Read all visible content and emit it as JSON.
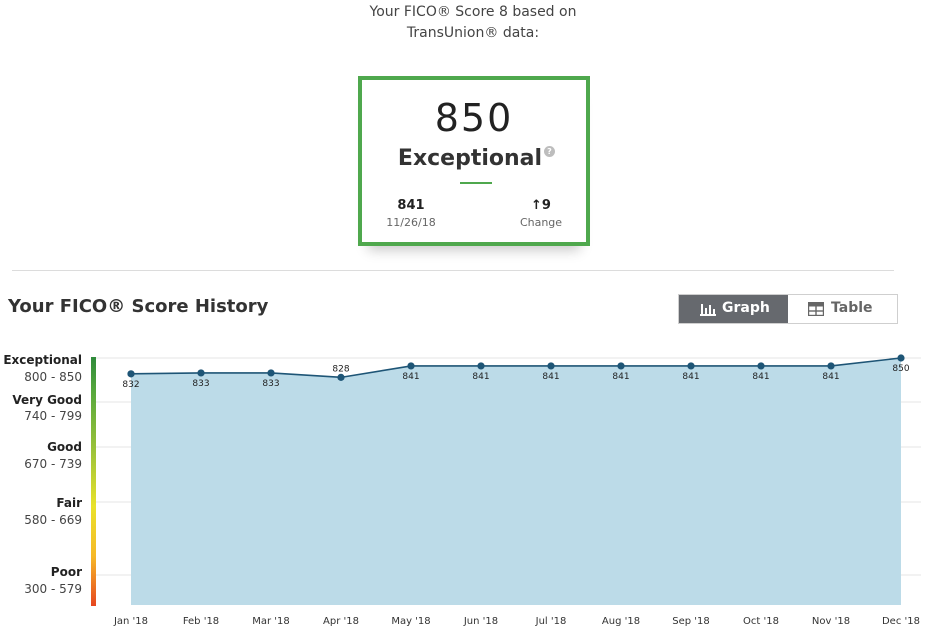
{
  "header": {
    "line1": "Your FICO® Score 8 based on",
    "line2": "TransUnion® data:"
  },
  "score_card": {
    "score": "850",
    "rating": "Exceptional",
    "help_icon": "?",
    "previous_score": "841",
    "previous_date": "11/26/18",
    "change_value": "↑9",
    "change_label": "Change"
  },
  "history": {
    "title": "Your FICO® Score History",
    "view_toggle": {
      "graph_label": "Graph",
      "table_label": "Table",
      "selected": "Graph"
    }
  },
  "score_bands": [
    {
      "name": "Exceptional",
      "range": "800 - 850"
    },
    {
      "name": "Very Good",
      "range": "740 - 799"
    },
    {
      "name": "Good",
      "range": "670 - 739"
    },
    {
      "name": "Fair",
      "range": "580 - 669"
    },
    {
      "name": "Poor",
      "range": "300 - 579"
    }
  ],
  "colors": {
    "accent_green": "#4fa84d",
    "line": "#1e5576",
    "area_fill": "#bcdbe8",
    "toggle_active": "#66696e"
  },
  "chart_data": {
    "type": "area",
    "categories": [
      "Jan '18",
      "Feb '18",
      "Mar '18",
      "Apr '18",
      "May '18",
      "Jun '18",
      "Jul '18",
      "Aug '18",
      "Sep '18",
      "Oct '18",
      "Nov '18",
      "Dec '18"
    ],
    "values": [
      832,
      833,
      833,
      828,
      841,
      841,
      841,
      841,
      841,
      841,
      841,
      850
    ],
    "data_labels": [
      "832",
      "833",
      "833",
      "828",
      "841",
      "841",
      "841",
      "841",
      "841",
      "841",
      "841",
      "850"
    ],
    "ylim": [
      300,
      850
    ],
    "grid": true
  }
}
